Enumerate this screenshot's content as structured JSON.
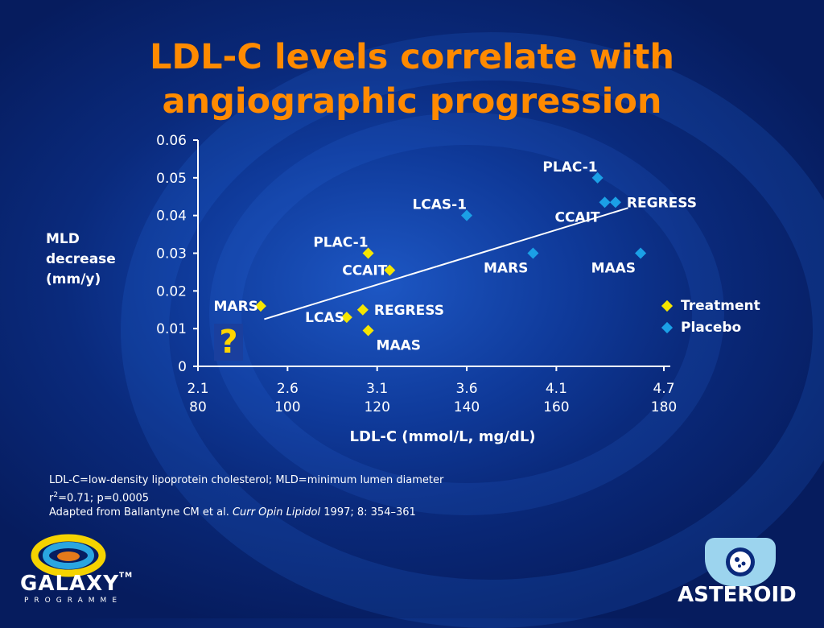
{
  "slide": {
    "title_line1": "LDL-C levels correlate with",
    "title_line2": "angiographic progression",
    "ylabel_lines": [
      "MLD",
      "decrease",
      "(mm/y)"
    ],
    "xlabel": "LDL-C (mmol/L, mg/dL)",
    "question_mark": "?",
    "footnotes": {
      "line1": "LDL-C=low-density lipoprotein cholesterol; MLD=minimum lumen diameter",
      "line2_prefix": "r",
      "line2_sup": "2",
      "line2_rest": "=0.71; p=0.0005",
      "line3_prefix": "Adapted from Ballantyne CM et al. ",
      "line3_journal": "Curr Opin Lipidol",
      "line3_rest": " 1997; 8: 354–361"
    },
    "logos": {
      "galaxy_word": "GALAXY",
      "galaxy_tm": "TM",
      "galaxy_sub": "PROGRAMME",
      "asteroid_word": "ASTEROID"
    }
  },
  "chart_data": {
    "type": "scatter",
    "xlim": [
      2.1,
      4.7
    ],
    "ylim": [
      0,
      0.06
    ],
    "xticks": [
      {
        "value": 2.1,
        "label": "2.1",
        "label2": "80"
      },
      {
        "value": 2.6,
        "label": "2.6",
        "label2": "100"
      },
      {
        "value": 3.1,
        "label": "3.1",
        "label2": "120"
      },
      {
        "value": 3.6,
        "label": "3.6",
        "label2": "140"
      },
      {
        "value": 4.1,
        "label": "4.1",
        "label2": "160"
      },
      {
        "value": 4.7,
        "label": "4.7",
        "label2": "180"
      }
    ],
    "yticks": [
      {
        "value": 0,
        "label": "0"
      },
      {
        "value": 0.01,
        "label": "0.01"
      },
      {
        "value": 0.02,
        "label": "0.02"
      },
      {
        "value": 0.03,
        "label": "0.03"
      },
      {
        "value": 0.04,
        "label": "0.04"
      },
      {
        "value": 0.05,
        "label": "0.05"
      },
      {
        "value": 0.06,
        "label": "0.06"
      }
    ],
    "series": [
      {
        "name": "Treatment",
        "color": "#f5e600",
        "points": [
          {
            "label": "MARS",
            "x": 2.45,
            "y": 0.016,
            "anchor": "left"
          },
          {
            "label": "LCAS",
            "x": 2.93,
            "y": 0.013,
            "anchor": "left"
          },
          {
            "label": "REGRESS",
            "x": 3.02,
            "y": 0.015,
            "anchor": "right"
          },
          {
            "label": "MAAS",
            "x": 3.05,
            "y": 0.0095,
            "anchor": "below"
          },
          {
            "label": "PLAC-1",
            "x": 3.05,
            "y": 0.03,
            "anchor": "left-above"
          },
          {
            "label": "CCAIT",
            "x": 3.17,
            "y": 0.0255,
            "anchor": "left"
          }
        ]
      },
      {
        "name": "Placebo",
        "color": "#1ba0e6",
        "points": [
          {
            "label": "LCAS-1",
            "x": 3.6,
            "y": 0.04,
            "anchor": "left-above"
          },
          {
            "label": "MARS",
            "x": 3.97,
            "y": 0.03,
            "anchor": "left-below"
          },
          {
            "label": "PLAC-1",
            "x": 4.33,
            "y": 0.05,
            "anchor": "left-above"
          },
          {
            "label": "CCAIT",
            "x": 4.37,
            "y": 0.0435,
            "anchor": "left-below"
          },
          {
            "label": "REGRESS",
            "x": 4.43,
            "y": 0.0435,
            "anchor": "right"
          },
          {
            "label": "MAAS",
            "x": 4.57,
            "y": 0.03,
            "anchor": "left-below"
          }
        ]
      }
    ],
    "trendline": {
      "x": [
        2.47,
        4.5
      ],
      "y": [
        0.0125,
        0.042
      ],
      "color": "#ffffff"
    },
    "legend": {
      "position": "right",
      "entries": [
        "Treatment",
        "Placebo"
      ]
    },
    "grid": false
  }
}
